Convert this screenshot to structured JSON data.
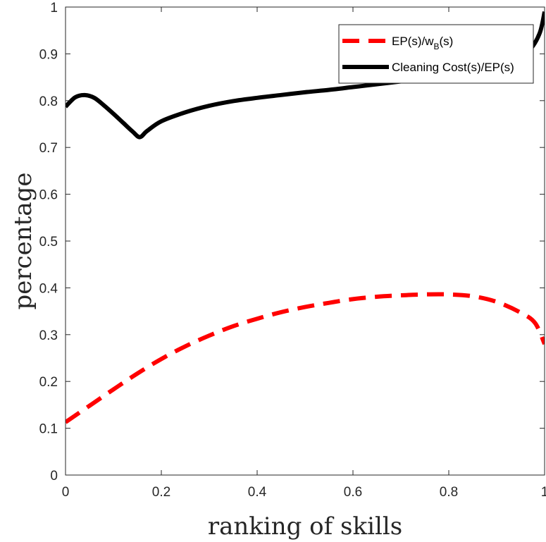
{
  "chart_data": {
    "type": "line",
    "title": "",
    "xlabel": "ranking of skills",
    "ylabel": "percentage",
    "xlim": [
      0,
      1
    ],
    "ylim": [
      0,
      1
    ],
    "xticks": [
      0,
      0.2,
      0.4,
      0.6,
      0.8,
      1
    ],
    "xtick_labels": [
      "0",
      "0.2",
      "0.4",
      "0.6",
      "0.8",
      "1"
    ],
    "yticks": [
      0,
      0.1,
      0.2,
      0.3,
      0.4,
      0.5,
      0.6,
      0.7,
      0.8,
      0.9,
      1
    ],
    "ytick_labels": [
      "0",
      "0.1",
      "0.2",
      "0.3",
      "0.4",
      "0.5",
      "0.6",
      "0.7",
      "0.8",
      "0.9",
      "1"
    ],
    "grid": false,
    "legend_position": "top-right",
    "series": [
      {
        "name_main": "EP(s)/w",
        "name_sub": "B",
        "name_tail": "(s)",
        "color": "#ff0000",
        "style": "dashed",
        "x": [
          0,
          0.05,
          0.1,
          0.15,
          0.2,
          0.25,
          0.3,
          0.35,
          0.4,
          0.45,
          0.5,
          0.55,
          0.6,
          0.65,
          0.7,
          0.75,
          0.8,
          0.85,
          0.9,
          0.95,
          0.98,
          1.0
        ],
        "y": [
          0.113,
          0.148,
          0.183,
          0.217,
          0.248,
          0.275,
          0.298,
          0.318,
          0.334,
          0.348,
          0.359,
          0.368,
          0.376,
          0.381,
          0.384,
          0.386,
          0.386,
          0.382,
          0.37,
          0.347,
          0.325,
          0.28
        ]
      },
      {
        "name": "Cleaning Cost(s)/EP(s)",
        "color": "#000000",
        "style": "solid",
        "x": [
          0,
          0.02,
          0.04,
          0.06,
          0.08,
          0.1,
          0.12,
          0.14,
          0.155,
          0.17,
          0.2,
          0.25,
          0.3,
          0.35,
          0.4,
          0.45,
          0.5,
          0.55,
          0.6,
          0.65,
          0.7,
          0.75,
          0.8,
          0.85,
          0.9,
          0.94,
          0.97,
          0.99,
          1.0
        ],
        "y": [
          0.787,
          0.807,
          0.812,
          0.806,
          0.79,
          0.772,
          0.753,
          0.734,
          0.722,
          0.735,
          0.756,
          0.775,
          0.789,
          0.799,
          0.806,
          0.812,
          0.818,
          0.823,
          0.829,
          0.835,
          0.841,
          0.847,
          0.855,
          0.864,
          0.876,
          0.89,
          0.91,
          0.945,
          0.99
        ]
      }
    ]
  }
}
